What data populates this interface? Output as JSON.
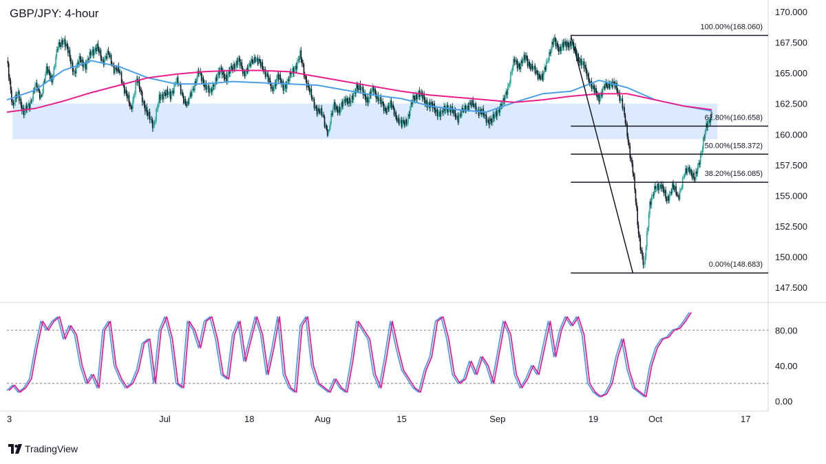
{
  "header": {
    "title": "GBP/JPY: 4-hour"
  },
  "footer": {
    "brand": "TradingView"
  },
  "colors": {
    "up": "#26a69a",
    "down": "#131722",
    "ma_fast": "#4a9fe8",
    "ma_slow": "#e91e8c",
    "zone": "#dbeafc",
    "fib": "#131722"
  },
  "chart_data": {
    "type": "candlestick",
    "title": "GBP/JPY: 4-hour",
    "price_axis": {
      "ticks": [
        "147.500",
        "150.000",
        "152.500",
        "155.000",
        "157.500",
        "160.000",
        "162.500",
        "165.000",
        "167.500",
        "170.000"
      ],
      "ylim": [
        146.5,
        170.5
      ]
    },
    "time_axis": {
      "labels": [
        {
          "day": 0,
          "text": "3"
        },
        {
          "day": 28,
          "text": "Jul"
        },
        {
          "day": 43,
          "text": "18"
        },
        {
          "day": 56,
          "text": "Aug"
        },
        {
          "day": 70,
          "text": "15"
        },
        {
          "day": 87,
          "text": "Sep"
        },
        {
          "day": 104,
          "text": "19"
        },
        {
          "day": 115,
          "text": "Oct"
        },
        {
          "day": 131,
          "text": "17"
        }
      ],
      "xlim": [
        0,
        135
      ]
    },
    "support_zone": {
      "from_day": 1,
      "to_day": 126,
      "low": 159.6,
      "high": 162.5
    },
    "fibonacci": {
      "swing_high": {
        "day": 100,
        "price": 168.06
      },
      "swing_low": {
        "day": 111,
        "price": 148.683
      },
      "end_day": 135,
      "levels": [
        {
          "label": "100.00%(168.060)",
          "price": 168.06
        },
        {
          "label": "61.80%(160.658)",
          "price": 160.658
        },
        {
          "label": "50.00%(158.372)",
          "price": 158.372
        },
        {
          "label": "38.20%(156.085)",
          "price": 156.085
        },
        {
          "label": "0.00%(148.683)",
          "price": 148.683
        }
      ]
    },
    "price_path": [
      [
        0,
        166.0
      ],
      [
        1,
        162.5
      ],
      [
        2,
        163.2
      ],
      [
        3,
        161.8
      ],
      [
        4,
        162.3
      ],
      [
        5,
        164.0
      ],
      [
        6,
        163.0
      ],
      [
        7,
        165.2
      ],
      [
        8,
        164.5
      ],
      [
        9,
        167.0
      ],
      [
        10,
        167.8
      ],
      [
        11,
        166.5
      ],
      [
        12,
        165.0
      ],
      [
        13,
        166.2
      ],
      [
        14,
        165.5
      ],
      [
        15,
        166.8
      ],
      [
        16,
        167.0
      ],
      [
        17,
        166.0
      ],
      [
        18,
        166.5
      ],
      [
        19,
        165.4
      ],
      [
        20,
        165.0
      ],
      [
        21,
        163.5
      ],
      [
        22,
        162.0
      ],
      [
        23,
        164.5
      ],
      [
        24,
        163.0
      ],
      [
        25,
        161.5
      ],
      [
        26,
        160.8
      ],
      [
        27,
        162.8
      ],
      [
        28,
        163.5
      ],
      [
        29,
        163.0
      ],
      [
        30,
        164.5
      ],
      [
        31,
        163.3
      ],
      [
        32,
        162.3
      ],
      [
        33,
        163.8
      ],
      [
        34,
        165.0
      ],
      [
        35,
        164.2
      ],
      [
        36,
        163.3
      ],
      [
        37,
        164.5
      ],
      [
        38,
        165.2
      ],
      [
        39,
        164.6
      ],
      [
        40,
        165.5
      ],
      [
        41,
        166.0
      ],
      [
        42,
        165.0
      ],
      [
        43,
        165.5
      ],
      [
        44,
        166.3
      ],
      [
        45,
        165.6
      ],
      [
        46,
        165.0
      ],
      [
        47,
        163.5
      ],
      [
        48,
        164.8
      ],
      [
        49,
        163.8
      ],
      [
        50,
        164.5
      ],
      [
        51,
        165.4
      ],
      [
        52,
        166.4
      ],
      [
        53,
        164.5
      ],
      [
        54,
        163.0
      ],
      [
        55,
        162.0
      ],
      [
        56,
        161.5
      ],
      [
        57,
        160.0
      ],
      [
        58,
        162.5
      ],
      [
        59,
        161.8
      ],
      [
        60,
        163.0
      ],
      [
        61,
        162.5
      ],
      [
        62,
        164.0
      ],
      [
        63,
        163.5
      ],
      [
        64,
        162.8
      ],
      [
        65,
        163.7
      ],
      [
        66,
        162.8
      ],
      [
        67,
        162.0
      ],
      [
        68,
        162.4
      ],
      [
        69,
        161.5
      ],
      [
        70,
        160.7
      ],
      [
        71,
        161.2
      ],
      [
        72,
        162.8
      ],
      [
        73,
        163.4
      ],
      [
        74,
        162.8
      ],
      [
        75,
        162.4
      ],
      [
        76,
        162.0
      ],
      [
        77,
        161.6
      ],
      [
        78,
        162.3
      ],
      [
        79,
        161.8
      ],
      [
        80,
        161.4
      ],
      [
        81,
        161.9
      ],
      [
        82,
        162.5
      ],
      [
        83,
        162.2
      ],
      [
        84,
        161.8
      ],
      [
        85,
        161.3
      ],
      [
        86,
        161.0
      ],
      [
        87,
        162.0
      ],
      [
        88,
        162.5
      ],
      [
        89,
        164.2
      ],
      [
        90,
        166.0
      ],
      [
        91,
        165.6
      ],
      [
        92,
        166.3
      ],
      [
        93,
        165.4
      ],
      [
        94,
        165.0
      ],
      [
        95,
        164.5
      ],
      [
        96,
        166.4
      ],
      [
        97,
        167.6
      ],
      [
        98,
        167.0
      ],
      [
        99,
        167.3
      ],
      [
        100,
        167.5
      ],
      [
        101,
        166.5
      ],
      [
        102,
        165.8
      ],
      [
        103,
        164.8
      ],
      [
        104,
        163.6
      ],
      [
        105,
        163.0
      ],
      [
        106,
        163.8
      ],
      [
        107,
        164.2
      ],
      [
        108,
        163.8
      ],
      [
        109,
        162.8
      ],
      [
        110,
        160.0
      ],
      [
        111,
        157.0
      ],
      [
        112,
        152.0
      ],
      [
        113,
        149.0
      ],
      [
        114,
        154.5
      ],
      [
        115,
        155.5
      ],
      [
        116,
        156.0
      ],
      [
        117,
        154.5
      ],
      [
        118,
        155.8
      ],
      [
        119,
        154.8
      ],
      [
        120,
        156.5
      ],
      [
        121,
        157.3
      ],
      [
        122,
        156.2
      ],
      [
        123,
        158.3
      ],
      [
        124,
        160.5
      ],
      [
        125,
        161.8
      ]
    ],
    "moving_averages": [
      {
        "color": "#4a9fe8",
        "path": [
          [
            0,
            162.8
          ],
          [
            5,
            163.6
          ],
          [
            10,
            165.2
          ],
          [
            15,
            166.0
          ],
          [
            20,
            165.5
          ],
          [
            25,
            164.6
          ],
          [
            30,
            164.1
          ],
          [
            35,
            164.1
          ],
          [
            40,
            164.3
          ],
          [
            45,
            164.2
          ],
          [
            50,
            164.1
          ],
          [
            55,
            164.0
          ],
          [
            60,
            163.6
          ],
          [
            65,
            163.2
          ],
          [
            70,
            162.9
          ],
          [
            75,
            162.3
          ],
          [
            80,
            162.0
          ],
          [
            85,
            161.8
          ],
          [
            90,
            162.6
          ],
          [
            95,
            163.3
          ],
          [
            100,
            163.5
          ],
          [
            105,
            164.4
          ],
          [
            110,
            163.8
          ],
          [
            115,
            162.8
          ],
          [
            120,
            162.3
          ],
          [
            125,
            161.9
          ]
        ]
      },
      {
        "color": "#e91e8c",
        "path": [
          [
            0,
            161.8
          ],
          [
            5,
            162.1
          ],
          [
            10,
            162.7
          ],
          [
            15,
            163.4
          ],
          [
            20,
            164.0
          ],
          [
            25,
            164.6
          ],
          [
            30,
            164.9
          ],
          [
            35,
            165.1
          ],
          [
            40,
            165.2
          ],
          [
            45,
            165.2
          ],
          [
            50,
            165.1
          ],
          [
            55,
            164.7
          ],
          [
            60,
            164.3
          ],
          [
            65,
            163.9
          ],
          [
            70,
            163.5
          ],
          [
            75,
            163.2
          ],
          [
            80,
            163.0
          ],
          [
            85,
            162.8
          ],
          [
            90,
            162.6
          ],
          [
            95,
            162.8
          ],
          [
            100,
            163.1
          ],
          [
            105,
            163.3
          ],
          [
            110,
            163.3
          ],
          [
            115,
            162.8
          ],
          [
            120,
            162.3
          ],
          [
            125,
            162.0
          ]
        ]
      }
    ],
    "stochastic": {
      "ticks": [
        "0.00",
        "40.00",
        "80.00"
      ],
      "ylim": [
        -5,
        105
      ],
      "overbought": 80,
      "oversold": 20,
      "k_color": "#4a9fe8",
      "d_color": "#e91e8c",
      "path": [
        [
          0,
          12
        ],
        [
          1,
          18
        ],
        [
          2,
          10
        ],
        [
          3,
          15
        ],
        [
          4,
          25
        ],
        [
          5,
          60
        ],
        [
          6,
          90
        ],
        [
          7,
          80
        ],
        [
          8,
          90
        ],
        [
          9,
          95
        ],
        [
          10,
          70
        ],
        [
          11,
          85
        ],
        [
          12,
          75
        ],
        [
          13,
          40
        ],
        [
          14,
          20
        ],
        [
          15,
          30
        ],
        [
          16,
          15
        ],
        [
          17,
          80
        ],
        [
          18,
          90
        ],
        [
          19,
          40
        ],
        [
          20,
          25
        ],
        [
          21,
          15
        ],
        [
          22,
          20
        ],
        [
          23,
          35
        ],
        [
          24,
          65
        ],
        [
          25,
          70
        ],
        [
          26,
          20
        ],
        [
          27,
          80
        ],
        [
          28,
          95
        ],
        [
          29,
          70
        ],
        [
          30,
          20
        ],
        [
          31,
          15
        ],
        [
          32,
          90
        ],
        [
          33,
          80
        ],
        [
          34,
          60
        ],
        [
          35,
          90
        ],
        [
          36,
          95
        ],
        [
          37,
          70
        ],
        [
          38,
          30
        ],
        [
          39,
          25
        ],
        [
          40,
          75
        ],
        [
          41,
          90
        ],
        [
          42,
          45
        ],
        [
          43,
          70
        ],
        [
          44,
          95
        ],
        [
          45,
          75
        ],
        [
          46,
          30
        ],
        [
          47,
          60
        ],
        [
          48,
          95
        ],
        [
          49,
          30
        ],
        [
          50,
          15
        ],
        [
          51,
          10
        ],
        [
          52,
          85
        ],
        [
          53,
          95
        ],
        [
          54,
          40
        ],
        [
          55,
          20
        ],
        [
          56,
          15
        ],
        [
          57,
          10
        ],
        [
          58,
          25
        ],
        [
          59,
          15
        ],
        [
          60,
          10
        ],
        [
          61,
          45
        ],
        [
          62,
          90
        ],
        [
          63,
          80
        ],
        [
          64,
          70
        ],
        [
          65,
          30
        ],
        [
          66,
          15
        ],
        [
          67,
          50
        ],
        [
          68,
          90
        ],
        [
          69,
          60
        ],
        [
          70,
          35
        ],
        [
          71,
          25
        ],
        [
          72,
          15
        ],
        [
          73,
          10
        ],
        [
          74,
          35
        ],
        [
          75,
          50
        ],
        [
          76,
          90
        ],
        [
          77,
          95
        ],
        [
          78,
          70
        ],
        [
          79,
          30
        ],
        [
          80,
          20
        ],
        [
          81,
          25
        ],
        [
          82,
          45
        ],
        [
          83,
          30
        ],
        [
          84,
          50
        ],
        [
          85,
          40
        ],
        [
          86,
          20
        ],
        [
          87,
          55
        ],
        [
          88,
          90
        ],
        [
          89,
          75
        ],
        [
          90,
          30
        ],
        [
          91,
          15
        ],
        [
          92,
          25
        ],
        [
          93,
          40
        ],
        [
          94,
          30
        ],
        [
          95,
          60
        ],
        [
          96,
          90
        ],
        [
          97,
          50
        ],
        [
          98,
          80
        ],
        [
          99,
          95
        ],
        [
          100,
          85
        ],
        [
          101,
          95
        ],
        [
          102,
          75
        ],
        [
          103,
          20
        ],
        [
          104,
          10
        ],
        [
          105,
          5
        ],
        [
          106,
          8
        ],
        [
          107,
          20
        ],
        [
          108,
          50
        ],
        [
          109,
          70
        ],
        [
          110,
          35
        ],
        [
          111,
          15
        ],
        [
          112,
          10
        ],
        [
          113,
          5
        ],
        [
          114,
          40
        ],
        [
          115,
          60
        ],
        [
          116,
          70
        ],
        [
          117,
          72
        ],
        [
          118,
          80
        ],
        [
          119,
          82
        ],
        [
          120,
          90
        ],
        [
          121,
          100
        ]
      ]
    }
  }
}
